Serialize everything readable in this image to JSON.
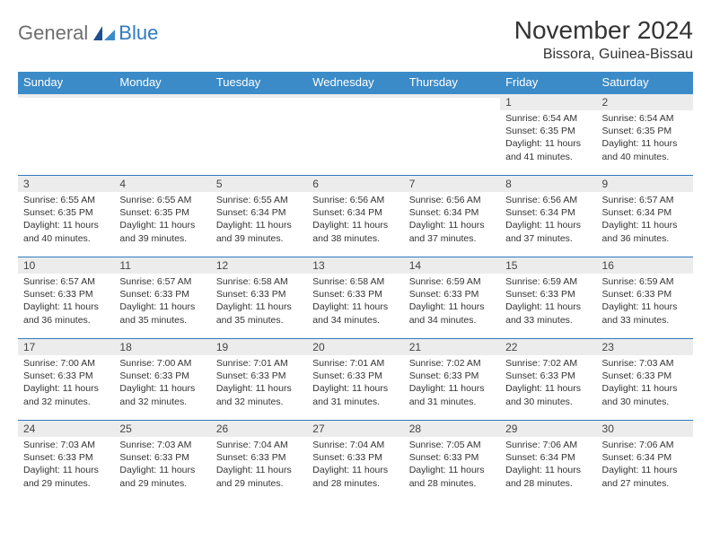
{
  "logo": {
    "text1": "General",
    "text2": "Blue"
  },
  "title": "November 2024",
  "location": "Bissora, Guinea-Bissau",
  "day_headers": [
    "Sunday",
    "Monday",
    "Tuesday",
    "Wednesday",
    "Thursday",
    "Friday",
    "Saturday"
  ],
  "colors": {
    "header_bg": "#3b8bc8",
    "header_text": "#ffffff",
    "row_border": "#2f7bbf",
    "daynum_bg": "#ececec",
    "text": "#333333",
    "logo_gray": "#6e6e6e",
    "logo_blue": "#2f7bbf"
  },
  "weeks": [
    [
      {
        "n": "",
        "sr": "",
        "ss": "",
        "dl": ""
      },
      {
        "n": "",
        "sr": "",
        "ss": "",
        "dl": ""
      },
      {
        "n": "",
        "sr": "",
        "ss": "",
        "dl": ""
      },
      {
        "n": "",
        "sr": "",
        "ss": "",
        "dl": ""
      },
      {
        "n": "",
        "sr": "",
        "ss": "",
        "dl": ""
      },
      {
        "n": "1",
        "sr": "Sunrise: 6:54 AM",
        "ss": "Sunset: 6:35 PM",
        "dl": "Daylight: 11 hours and 41 minutes."
      },
      {
        "n": "2",
        "sr": "Sunrise: 6:54 AM",
        "ss": "Sunset: 6:35 PM",
        "dl": "Daylight: 11 hours and 40 minutes."
      }
    ],
    [
      {
        "n": "3",
        "sr": "Sunrise: 6:55 AM",
        "ss": "Sunset: 6:35 PM",
        "dl": "Daylight: 11 hours and 40 minutes."
      },
      {
        "n": "4",
        "sr": "Sunrise: 6:55 AM",
        "ss": "Sunset: 6:35 PM",
        "dl": "Daylight: 11 hours and 39 minutes."
      },
      {
        "n": "5",
        "sr": "Sunrise: 6:55 AM",
        "ss": "Sunset: 6:34 PM",
        "dl": "Daylight: 11 hours and 39 minutes."
      },
      {
        "n": "6",
        "sr": "Sunrise: 6:56 AM",
        "ss": "Sunset: 6:34 PM",
        "dl": "Daylight: 11 hours and 38 minutes."
      },
      {
        "n": "7",
        "sr": "Sunrise: 6:56 AM",
        "ss": "Sunset: 6:34 PM",
        "dl": "Daylight: 11 hours and 37 minutes."
      },
      {
        "n": "8",
        "sr": "Sunrise: 6:56 AM",
        "ss": "Sunset: 6:34 PM",
        "dl": "Daylight: 11 hours and 37 minutes."
      },
      {
        "n": "9",
        "sr": "Sunrise: 6:57 AM",
        "ss": "Sunset: 6:34 PM",
        "dl": "Daylight: 11 hours and 36 minutes."
      }
    ],
    [
      {
        "n": "10",
        "sr": "Sunrise: 6:57 AM",
        "ss": "Sunset: 6:33 PM",
        "dl": "Daylight: 11 hours and 36 minutes."
      },
      {
        "n": "11",
        "sr": "Sunrise: 6:57 AM",
        "ss": "Sunset: 6:33 PM",
        "dl": "Daylight: 11 hours and 35 minutes."
      },
      {
        "n": "12",
        "sr": "Sunrise: 6:58 AM",
        "ss": "Sunset: 6:33 PM",
        "dl": "Daylight: 11 hours and 35 minutes."
      },
      {
        "n": "13",
        "sr": "Sunrise: 6:58 AM",
        "ss": "Sunset: 6:33 PM",
        "dl": "Daylight: 11 hours and 34 minutes."
      },
      {
        "n": "14",
        "sr": "Sunrise: 6:59 AM",
        "ss": "Sunset: 6:33 PM",
        "dl": "Daylight: 11 hours and 34 minutes."
      },
      {
        "n": "15",
        "sr": "Sunrise: 6:59 AM",
        "ss": "Sunset: 6:33 PM",
        "dl": "Daylight: 11 hours and 33 minutes."
      },
      {
        "n": "16",
        "sr": "Sunrise: 6:59 AM",
        "ss": "Sunset: 6:33 PM",
        "dl": "Daylight: 11 hours and 33 minutes."
      }
    ],
    [
      {
        "n": "17",
        "sr": "Sunrise: 7:00 AM",
        "ss": "Sunset: 6:33 PM",
        "dl": "Daylight: 11 hours and 32 minutes."
      },
      {
        "n": "18",
        "sr": "Sunrise: 7:00 AM",
        "ss": "Sunset: 6:33 PM",
        "dl": "Daylight: 11 hours and 32 minutes."
      },
      {
        "n": "19",
        "sr": "Sunrise: 7:01 AM",
        "ss": "Sunset: 6:33 PM",
        "dl": "Daylight: 11 hours and 32 minutes."
      },
      {
        "n": "20",
        "sr": "Sunrise: 7:01 AM",
        "ss": "Sunset: 6:33 PM",
        "dl": "Daylight: 11 hours and 31 minutes."
      },
      {
        "n": "21",
        "sr": "Sunrise: 7:02 AM",
        "ss": "Sunset: 6:33 PM",
        "dl": "Daylight: 11 hours and 31 minutes."
      },
      {
        "n": "22",
        "sr": "Sunrise: 7:02 AM",
        "ss": "Sunset: 6:33 PM",
        "dl": "Daylight: 11 hours and 30 minutes."
      },
      {
        "n": "23",
        "sr": "Sunrise: 7:03 AM",
        "ss": "Sunset: 6:33 PM",
        "dl": "Daylight: 11 hours and 30 minutes."
      }
    ],
    [
      {
        "n": "24",
        "sr": "Sunrise: 7:03 AM",
        "ss": "Sunset: 6:33 PM",
        "dl": "Daylight: 11 hours and 29 minutes."
      },
      {
        "n": "25",
        "sr": "Sunrise: 7:03 AM",
        "ss": "Sunset: 6:33 PM",
        "dl": "Daylight: 11 hours and 29 minutes."
      },
      {
        "n": "26",
        "sr": "Sunrise: 7:04 AM",
        "ss": "Sunset: 6:33 PM",
        "dl": "Daylight: 11 hours and 29 minutes."
      },
      {
        "n": "27",
        "sr": "Sunrise: 7:04 AM",
        "ss": "Sunset: 6:33 PM",
        "dl": "Daylight: 11 hours and 28 minutes."
      },
      {
        "n": "28",
        "sr": "Sunrise: 7:05 AM",
        "ss": "Sunset: 6:33 PM",
        "dl": "Daylight: 11 hours and 28 minutes."
      },
      {
        "n": "29",
        "sr": "Sunrise: 7:06 AM",
        "ss": "Sunset: 6:34 PM",
        "dl": "Daylight: 11 hours and 28 minutes."
      },
      {
        "n": "30",
        "sr": "Sunrise: 7:06 AM",
        "ss": "Sunset: 6:34 PM",
        "dl": "Daylight: 11 hours and 27 minutes."
      }
    ]
  ]
}
